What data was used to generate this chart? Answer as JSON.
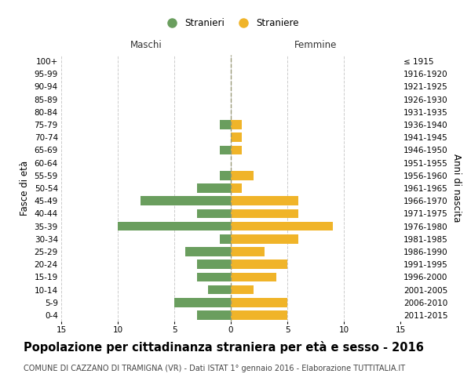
{
  "age_groups": [
    "0-4",
    "5-9",
    "10-14",
    "15-19",
    "20-24",
    "25-29",
    "30-34",
    "35-39",
    "40-44",
    "45-49",
    "50-54",
    "55-59",
    "60-64",
    "65-69",
    "70-74",
    "75-79",
    "80-84",
    "85-89",
    "90-94",
    "95-99",
    "100+"
  ],
  "birth_years": [
    "2011-2015",
    "2006-2010",
    "2001-2005",
    "1996-2000",
    "1991-1995",
    "1986-1990",
    "1981-1985",
    "1976-1980",
    "1971-1975",
    "1966-1970",
    "1961-1965",
    "1956-1960",
    "1951-1955",
    "1946-1950",
    "1941-1945",
    "1936-1940",
    "1931-1935",
    "1926-1930",
    "1921-1925",
    "1916-1920",
    "≤ 1915"
  ],
  "males": [
    3,
    5,
    2,
    3,
    3,
    4,
    1,
    10,
    3,
    8,
    3,
    1,
    0,
    1,
    0,
    1,
    0,
    0,
    0,
    0,
    0
  ],
  "females": [
    5,
    5,
    2,
    4,
    5,
    3,
    6,
    9,
    6,
    6,
    1,
    2,
    0,
    1,
    1,
    1,
    0,
    0,
    0,
    0,
    0
  ],
  "male_color": "#6a9e5e",
  "female_color": "#f0b429",
  "title": "Popolazione per cittadinanza straniera per età e sesso - 2016",
  "subtitle": "COMUNE DI CAZZANO DI TRAMIGNA (VR) - Dati ISTAT 1° gennaio 2016 - Elaborazione TUTTITALIA.IT",
  "ylabel_left": "Fasce di età",
  "ylabel_right": "Anni di nascita",
  "xlabel_left": "Maschi",
  "xlabel_right": "Femmine",
  "legend_male": "Stranieri",
  "legend_female": "Straniere",
  "xlim": 15,
  "background_color": "#ffffff",
  "grid_color": "#cccccc",
  "bar_height": 0.72,
  "center_line_color": "#999977",
  "title_fontsize": 10.5,
  "subtitle_fontsize": 7.0,
  "tick_fontsize": 7.5,
  "label_fontsize": 8.5
}
